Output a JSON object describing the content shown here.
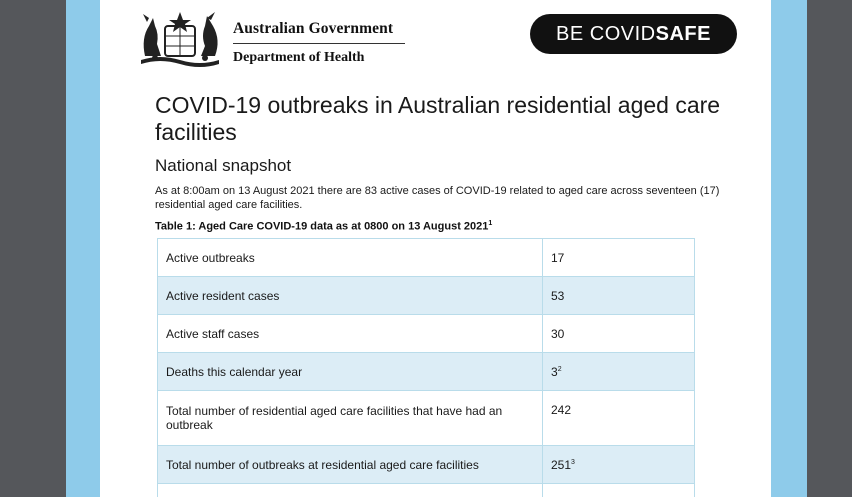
{
  "header": {
    "gov_name": "Australian Government",
    "dept_name": "Department of Health",
    "covidsafe_be": "BE COVID",
    "covidsafe_safe": "SAFE"
  },
  "document": {
    "title": "COVID-19 outbreaks in Australian residential aged care facilities",
    "subtitle": "National snapshot",
    "intro": "As at 8:00am on 13 August 2021 there are 83 active cases of COVID-19 related to aged care across seventeen (17) residential aged care facilities.",
    "table_caption": "Table 1: Aged Care COVID-19 data as at 0800 on 13 August 2021",
    "table_caption_note": "1"
  },
  "table": {
    "rows": [
      {
        "label": "Active outbreaks",
        "value": "17",
        "note": ""
      },
      {
        "label": "Active resident cases",
        "value": "53",
        "note": ""
      },
      {
        "label": "Active staff cases",
        "value": "30",
        "note": ""
      },
      {
        "label": "Deaths this calendar year",
        "value": "3",
        "note": "2"
      },
      {
        "label": "Total number of residential aged care facilities that have had an outbreak",
        "value": "242",
        "note": ""
      },
      {
        "label": "Total number of outbreaks at residential aged care facilities",
        "value": "251",
        "note": "3"
      }
    ]
  },
  "colors": {
    "frame_dark": "#55575b",
    "frame_blue": "#8ecbea",
    "row_shade": "#dcedf6",
    "border": "#b9dcea"
  }
}
